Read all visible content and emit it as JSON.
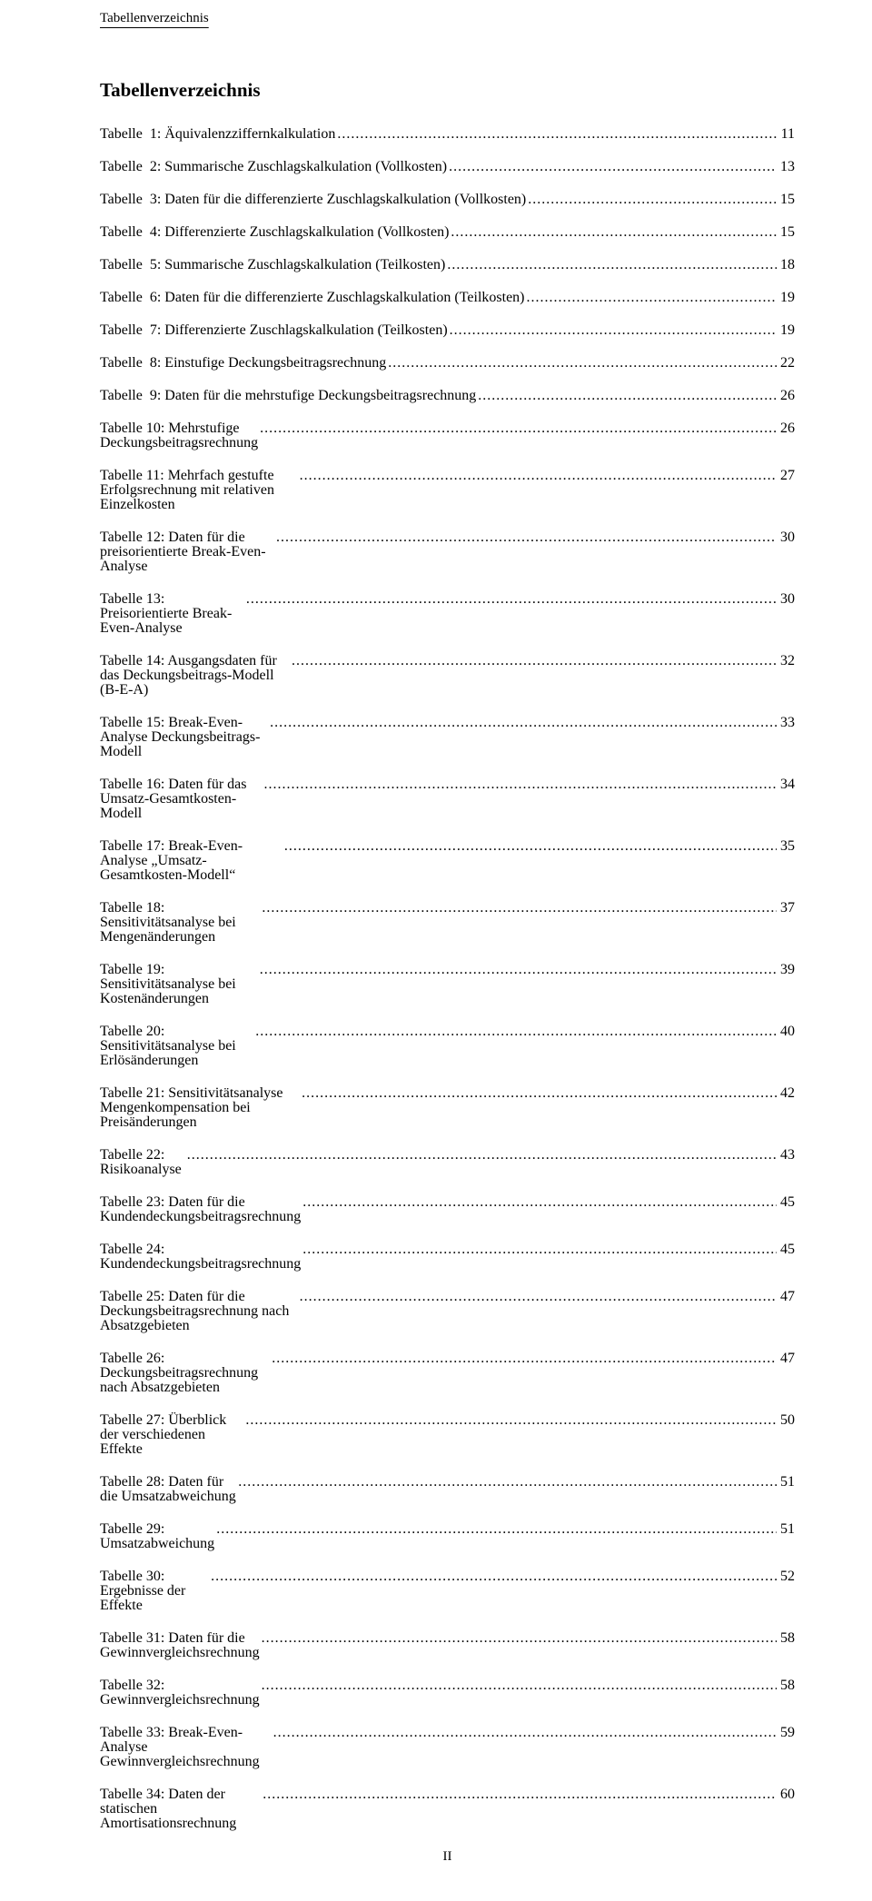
{
  "running_head": "Tabellenverzeichnis",
  "title": "Tabellenverzeichnis",
  "page_roman": "II",
  "entries": [
    {
      "label": "Tabelle  1: Äquivalenzziffernkalkulation",
      "page": "11",
      "aligned": true
    },
    {
      "label": "Tabelle  2: Summarische Zuschlagskalkulation (Vollkosten)",
      "page": "13",
      "aligned": true
    },
    {
      "label": "Tabelle  3: Daten für die differenzierte Zuschlagskalkulation (Vollkosten)",
      "page": "15",
      "aligned": true
    },
    {
      "label": "Tabelle  4: Differenzierte Zuschlagskalkulation (Vollkosten)",
      "page": "15",
      "aligned": true
    },
    {
      "label": "Tabelle  5: Summarische Zuschlagskalkulation (Teilkosten)",
      "page": "18",
      "aligned": true
    },
    {
      "label": "Tabelle  6: Daten für die differenzierte Zuschlagskalkulation (Teilkosten)",
      "page": "19",
      "aligned": true
    },
    {
      "label": "Tabelle  7: Differenzierte Zuschlagskalkulation (Teilkosten)",
      "page": "19",
      "aligned": true
    },
    {
      "label": "Tabelle  8: Einstufige Deckungsbeitragsrechnung",
      "page": "22",
      "aligned": true
    },
    {
      "label": "Tabelle  9: Daten für die mehrstufige Deckungsbeitragsrechnung",
      "page": "26",
      "aligned": true
    },
    {
      "label": "Tabelle 10: Mehrstufige Deckungsbeitragsrechnung",
      "page": "26",
      "aligned": false
    },
    {
      "label": "Tabelle 11: Mehrfach gestufte Erfolgsrechnung mit relativen Einzelkosten",
      "page": "27",
      "aligned": false
    },
    {
      "label": "Tabelle 12: Daten für die preisorientierte Break-Even-Analyse",
      "page": "30",
      "aligned": false
    },
    {
      "label": "Tabelle 13: Preisorientierte Break-Even-Analyse",
      "page": "30",
      "aligned": false
    },
    {
      "label": "Tabelle 14: Ausgangsdaten für das Deckungsbeitrags-Modell (B-E-A)",
      "page": "32",
      "aligned": false
    },
    {
      "label": "Tabelle 15: Break-Even-Analyse Deckungsbeitrags-Modell",
      "page": "33",
      "aligned": false
    },
    {
      "label": "Tabelle 16: Daten für das Umsatz-Gesamtkosten-Modell",
      "page": "34",
      "aligned": false
    },
    {
      "label": "Tabelle 17: Break-Even-Analyse „Umsatz-Gesamtkosten-Modell“",
      "page": "35",
      "aligned": false
    },
    {
      "label": "Tabelle 18: Sensitivitätsanalyse bei Mengenänderungen",
      "page": "37",
      "aligned": false
    },
    {
      "label": "Tabelle 19: Sensitivitätsanalyse bei Kostenänderungen",
      "page": "39",
      "aligned": false
    },
    {
      "label": "Tabelle 20: Sensitivitätsanalyse bei Erlösänderungen",
      "page": "40",
      "aligned": false
    },
    {
      "label": "Tabelle 21: Sensitivitätsanalyse Mengenkompensation bei Preisänderungen",
      "page": "42",
      "aligned": false
    },
    {
      "label": "Tabelle 22: Risikoanalyse",
      "page": "43",
      "aligned": false
    },
    {
      "label": "Tabelle 23: Daten für die Kundendeckungsbeitragsrechnung",
      "page": "45",
      "aligned": false
    },
    {
      "label": "Tabelle 24: Kundendeckungsbeitragsrechnung",
      "page": "45",
      "aligned": false
    },
    {
      "label": "Tabelle 25: Daten für die Deckungsbeitragsrechnung nach Absatzgebieten",
      "page": "47",
      "aligned": false
    },
    {
      "label": "Tabelle 26: Deckungsbeitragsrechnung nach Absatzgebieten",
      "page": "47",
      "aligned": false
    },
    {
      "label": "Tabelle 27: Überblick der verschiedenen Effekte",
      "page": "50",
      "aligned": false
    },
    {
      "label": "Tabelle 28: Daten für die Umsatzabweichung",
      "page": "51",
      "aligned": false
    },
    {
      "label": "Tabelle 29: Umsatzabweichung",
      "page": "51",
      "aligned": false
    },
    {
      "label": "Tabelle 30: Ergebnisse der Effekte",
      "page": "52",
      "aligned": false
    },
    {
      "label": "Tabelle 31: Daten für die Gewinnvergleichsrechnung",
      "page": "58",
      "aligned": false
    },
    {
      "label": "Tabelle 32: Gewinnvergleichsrechnung",
      "page": "58",
      "aligned": false
    },
    {
      "label": "Tabelle 33: Break-Even-Analyse Gewinnvergleichsrechnung",
      "page": "59",
      "aligned": false
    },
    {
      "label": "Tabelle 34: Daten der statischen Amortisationsrechnung",
      "page": "60",
      "aligned": false
    }
  ]
}
